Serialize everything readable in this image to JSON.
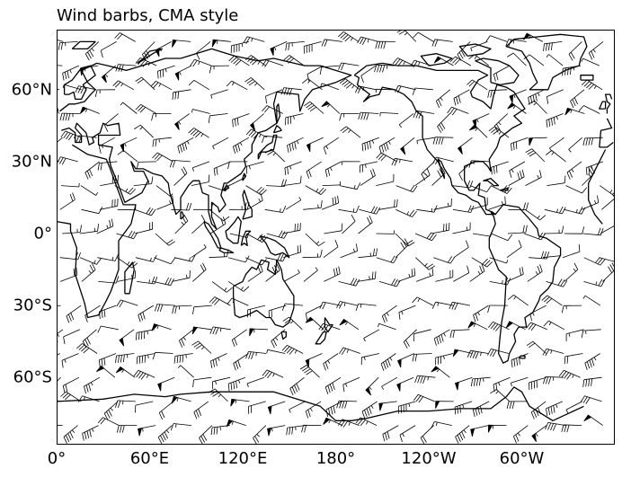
{
  "title": "Wind barbs, CMA style",
  "map": {
    "projection": "PlateCarree",
    "extent_lon": [
      0,
      360
    ],
    "extent_lat": [
      -90,
      90
    ],
    "visible_lat_range": [
      -88,
      85
    ],
    "coastline_color": "#000000",
    "barb_color": "#000000",
    "background": "#ffffff"
  },
  "axes": {
    "lat_ticks": [
      {
        "value": 60,
        "label": "60°N"
      },
      {
        "value": 30,
        "label": "30°N"
      },
      {
        "value": 0,
        "label": "0°"
      },
      {
        "value": -30,
        "label": "30°S"
      },
      {
        "value": -60,
        "label": "60°S"
      }
    ],
    "lon_ticks": [
      {
        "value": 0,
        "label": "0°"
      },
      {
        "value": 60,
        "label": "60°E"
      },
      {
        "value": 120,
        "label": "120°E"
      },
      {
        "value": 180,
        "label": "180°"
      },
      {
        "value": 240,
        "label": "120°W"
      },
      {
        "value": 300,
        "label": "60°W"
      }
    ]
  },
  "barbs": {
    "style": "CMA",
    "grid_spacing_lon": 12,
    "grid_spacing_lat": 10
  }
}
